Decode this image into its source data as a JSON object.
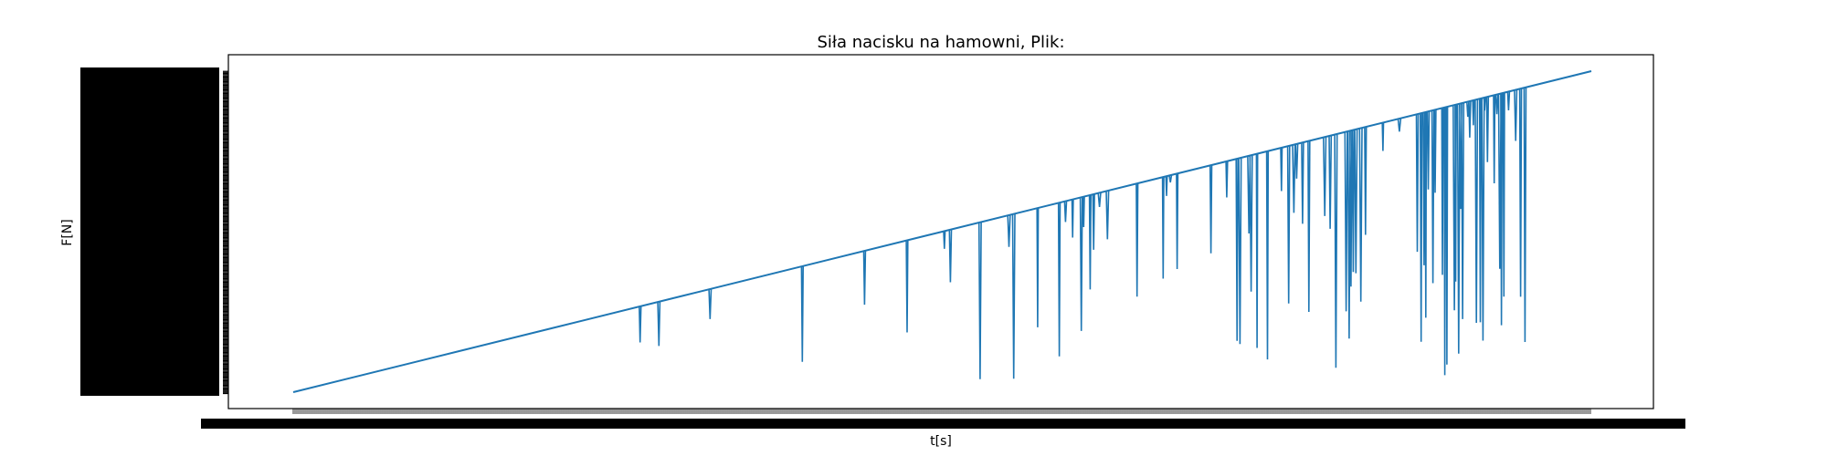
{
  "chart_data": {
    "type": "line",
    "title": "Siła nacisku na hamowni, Plik:",
    "xlabel": "t[s]",
    "ylabel": "F[N]",
    "grid": false,
    "legend": "none",
    "series": [
      {
        "color": "#1f77b4",
        "x": [
          0.0,
          0.1,
          0.2,
          0.3,
          0.4,
          0.5,
          0.6,
          0.7,
          0.8,
          0.9,
          1.0
        ],
        "y": [
          0.0,
          0.1,
          0.2,
          0.3,
          0.4,
          0.5,
          0.6,
          0.7,
          0.8,
          0.9,
          1.0
        ]
      }
    ]
  }
}
